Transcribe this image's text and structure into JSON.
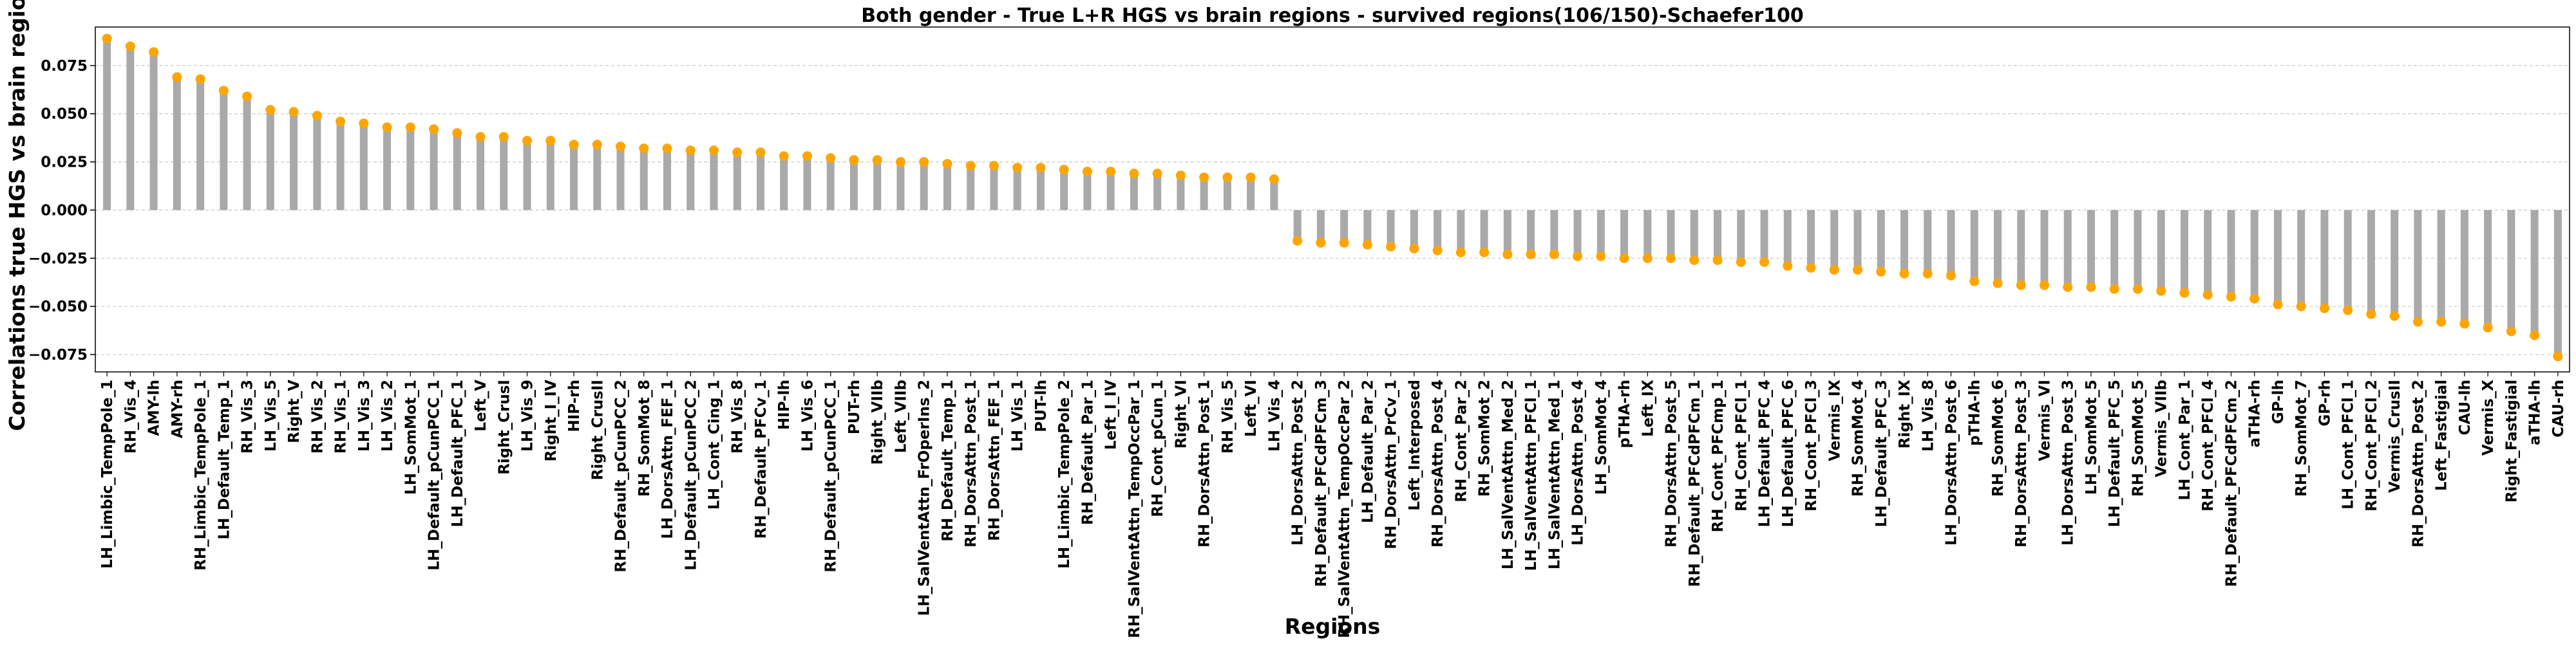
{
  "chart_data": {
    "type": "bar",
    "title": "Both gender - True L+R HGS vs brain regions - survived regions(106/150)-Schaefer100",
    "xlabel": "Regions",
    "ylabel": "Correlations true HGS vs brain regions",
    "ylim": [
      -0.084,
      0.095
    ],
    "yticks": [
      -0.075,
      -0.05,
      -0.025,
      0.0,
      0.025,
      0.05,
      0.075
    ],
    "ytick_labels": [
      "−0.075",
      "−0.050",
      "−0.025",
      "0.000",
      "0.025",
      "0.050",
      "0.075"
    ],
    "grid": "horizontal dashed",
    "bar_color": "#a9a9a9",
    "marker_color": "#ffa500",
    "categories": [
      "LH_Limbic_TempPole_1",
      "RH_Vis_4",
      "AMY-lh",
      "AMY-rh",
      "RH_Limbic_TempPole_1",
      "LH_Default_Temp_1",
      "RH_Vis_3",
      "LH_Vis_5",
      "Right_V",
      "RH_Vis_2",
      "RH_Vis_1",
      "LH_Vis_3",
      "LH_Vis_2",
      "LH_SomMot_1",
      "LH_Default_pCunPCC_1",
      "LH_Default_PFC_1",
      "Left_V",
      "Right_CrusI",
      "LH_Vis_9",
      "Right_I_IV",
      "HIP-rh",
      "Right_CrusII",
      "RH_Default_pCunPCC_2",
      "RH_SomMot_8",
      "LH_DorsAttn_FEF_1",
      "LH_Default_pCunPCC_2",
      "LH_Cont_Cing_1",
      "RH_Vis_8",
      "RH_Default_PFCv_1",
      "HIP-lh",
      "LH_Vis_6",
      "RH_Default_pCunPCC_1",
      "PUT-rh",
      "Right_VIIb",
      "Left_VIIb",
      "LH_SalVentAttn_FrOperIns_2",
      "RH_Default_Temp_1",
      "RH_DorsAttn_Post_1",
      "RH_DorsAttn_FEF_1",
      "LH_Vis_1",
      "PUT-lh",
      "LH_Limbic_TempPole_2",
      "RH_Default_Par_1",
      "Left_I_IV",
      "RH_SalVentAttn_TempOccPar_1",
      "RH_Cont_pCun_1",
      "Right_VI",
      "RH_DorsAttn_Post_1",
      "RH_Vis_5",
      "Left_VI",
      "LH_Vis_4",
      "LH_DorsAttn_Post_2",
      "RH_Default_PFCdPFCm_3",
      "RH_SalVentAttn_TempOccPar_2",
      "LH_Default_Par_2",
      "RH_DorsAttn_PrCv_1",
      "Left_Interposed",
      "RH_DorsAttn_Post_4",
      "RH_Cont_Par_2",
      "RH_SomMot_2",
      "LH_SalVentAttn_Med_2",
      "LH_SalVentAttn_PFCl_1",
      "LH_SalVentAttn_Med_1",
      "LH_DorsAttn_Post_4",
      "LH_SomMot_4",
      "pTHA-rh",
      "Left_IX",
      "RH_DorsAttn_Post_5",
      "RH_Default_PFCdPFCm_1",
      "RH_Cont_PFCmp_1",
      "RH_Cont_PFCl_1",
      "LH_Default_PFC_4",
      "LH_Default_PFC_6",
      "RH_Cont_PFCl_3",
      "Vermis_IX",
      "RH_SomMot_4",
      "LH_Default_PFC_3",
      "Right_IX",
      "LH_Vis_8",
      "LH_DorsAttn_Post_6",
      "pTHA-lh",
      "RH_SomMot_6",
      "RH_DorsAttn_Post_3",
      "Vermis_VI",
      "LH_DorsAttn_Post_3",
      "LH_SomMot_5",
      "LH_Default_PFC_5",
      "RH_SomMot_5",
      "Vermis_VIIb",
      "LH_Cont_Par_1",
      "RH_Cont_PFCl_4",
      "RH_Default_PFCdPFCm_2",
      "aTHA-rh",
      "GP-lh",
      "RH_SomMot_7",
      "GP-rh",
      "LH_Cont_PFCl_1",
      "RH_Cont_PFCl_2",
      "Vermis_CrusII",
      "RH_DorsAttn_Post_2",
      "Left_Fastigial",
      "CAU-lh",
      "Vermis_X",
      "Right_Fastigial",
      "aTHA-lh",
      "CAU-rh"
    ],
    "values": [
      0.089,
      0.085,
      0.082,
      0.069,
      0.068,
      0.062,
      0.059,
      0.052,
      0.051,
      0.049,
      0.046,
      0.045,
      0.043,
      0.043,
      0.042,
      0.04,
      0.038,
      0.038,
      0.036,
      0.036,
      0.034,
      0.034,
      0.033,
      0.032,
      0.032,
      0.031,
      0.031,
      0.03,
      0.03,
      0.028,
      0.028,
      0.027,
      0.026,
      0.026,
      0.025,
      0.025,
      0.024,
      0.023,
      0.023,
      0.022,
      0.022,
      0.021,
      0.02,
      0.02,
      0.019,
      0.019,
      0.018,
      0.017,
      0.017,
      0.017,
      0.016,
      -0.016,
      -0.017,
      -0.017,
      -0.018,
      -0.019,
      -0.02,
      -0.021,
      -0.022,
      -0.022,
      -0.023,
      -0.023,
      -0.023,
      -0.024,
      -0.024,
      -0.025,
      -0.025,
      -0.025,
      -0.026,
      -0.026,
      -0.027,
      -0.027,
      -0.029,
      -0.03,
      -0.031,
      -0.031,
      -0.032,
      -0.033,
      -0.033,
      -0.034,
      -0.037,
      -0.038,
      -0.039,
      -0.039,
      -0.04,
      -0.04,
      -0.041,
      -0.041,
      -0.042,
      -0.043,
      -0.044,
      -0.045,
      -0.046,
      -0.049,
      -0.05,
      -0.051,
      -0.052,
      -0.054,
      -0.055,
      -0.058,
      -0.058,
      -0.059,
      -0.061,
      -0.063,
      -0.065,
      -0.076
    ]
  }
}
